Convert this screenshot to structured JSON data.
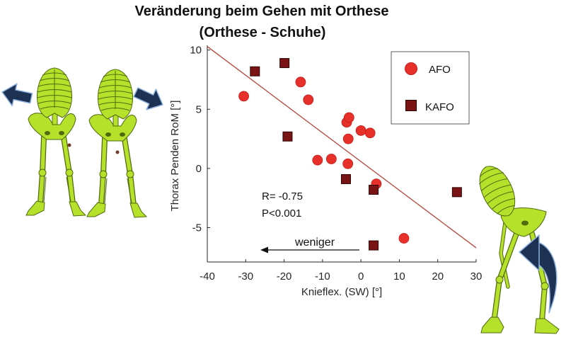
{
  "slide": {
    "title_line1": "Veränderung beim Gehen mit Orthese",
    "title_line2": "(Orthese - Schuhe)"
  },
  "chart_data": {
    "type": "scatter",
    "title": "",
    "xlabel": "Knieflex. (SW) [°]",
    "ylabel": "Thorax Penden RoM [°]",
    "xlim": [
      -40,
      30
    ],
    "ylim": [
      -7.9,
      10.4
    ],
    "xticks": [
      -40,
      -30,
      -20,
      -10,
      0,
      10,
      20,
      30
    ],
    "yticks": [
      -5,
      0,
      5,
      10
    ],
    "grid": false,
    "legend_position": "top-right",
    "series": [
      {
        "name": "AFO",
        "marker": "circle",
        "color": "#e8302b",
        "x": [
          -30.5,
          -15.7,
          -13.7,
          -11.3,
          -7.7,
          -3.7,
          -3.1,
          -3.3,
          -3.4,
          0.0,
          2.4,
          4.0,
          11.2
        ],
        "y": [
          6.1,
          7.3,
          5.8,
          0.7,
          0.8,
          3.9,
          4.3,
          2.5,
          0.4,
          3.2,
          3.0,
          -1.3,
          -5.9
        ]
      },
      {
        "name": "KAFO",
        "marker": "square",
        "color": "#7a1414",
        "x": [
          -27.6,
          -19.9,
          -19.1,
          -3.9,
          3.3,
          3.3,
          25.0
        ],
        "y": [
          8.2,
          8.9,
          2.7,
          -0.9,
          -1.8,
          -6.5,
          -2.0
        ]
      }
    ],
    "regression_line": {
      "x": [
        -40,
        30
      ],
      "y": [
        10.3,
        -6.7
      ],
      "color": "#b5473a"
    },
    "annotations": {
      "r": "R= -0.75",
      "p": "P<0.001",
      "arrow_label": "weniger"
    }
  },
  "colors": {
    "skeleton": "#b6e12b",
    "skeleton_outline": "#4f6b0e",
    "arrow": "#1d3153",
    "marker_dot": "#6e3b2a"
  },
  "icons": {
    "skeleton_front": "skeleton-front-icon",
    "skeleton_side": "skeleton-side-icon",
    "arrow_left": "arrow-left-icon",
    "arrow_right": "arrow-right-icon",
    "curved_arrow": "curved-arrow-icon"
  }
}
